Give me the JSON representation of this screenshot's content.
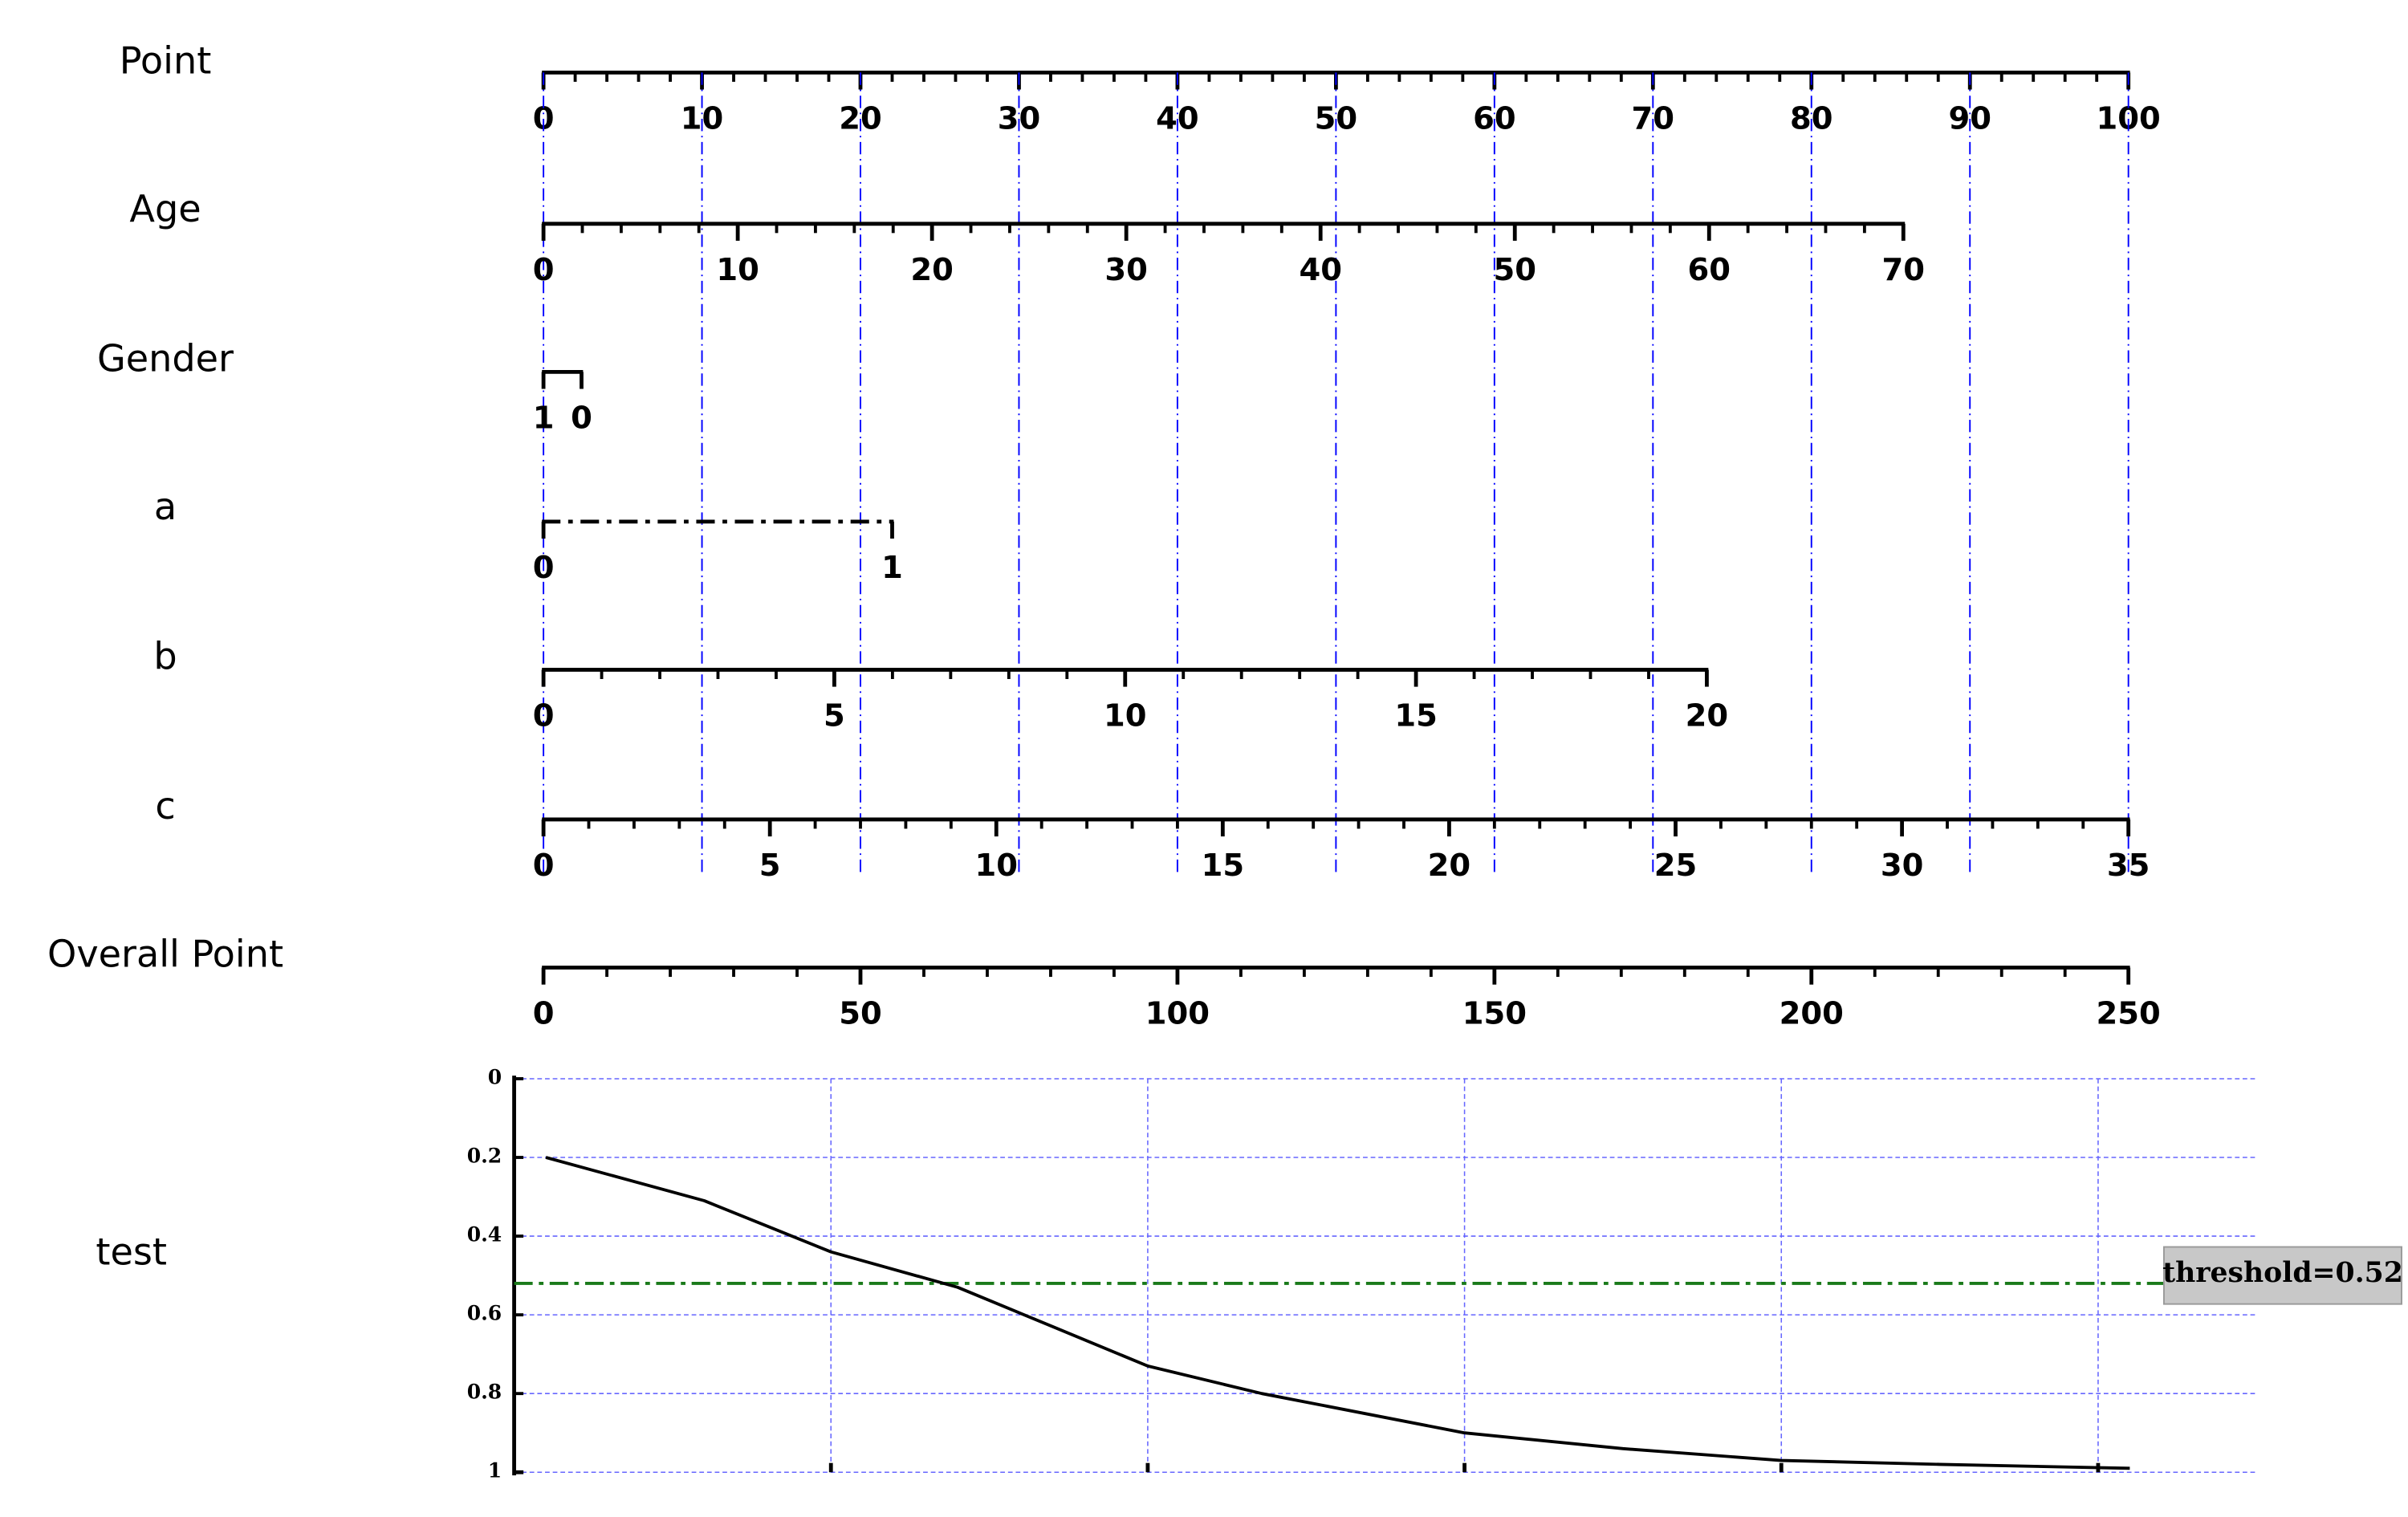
{
  "chart_data": {
    "type": "nomogram",
    "guide_color": "#0000ff",
    "rows": [
      {
        "label": "Point",
        "lim": [
          0,
          100
        ],
        "points": [
          0,
          100
        ],
        "ticks": [
          0,
          10,
          20,
          30,
          40,
          50,
          60,
          70,
          80,
          90,
          100
        ],
        "minor_step": 2,
        "style": "solid"
      },
      {
        "label": "Age",
        "lim": [
          0,
          70
        ],
        "points": [
          0,
          85.8
        ],
        "ticks": [
          0,
          10,
          20,
          30,
          40,
          50,
          60,
          70
        ],
        "minor_step": 2,
        "style": "solid"
      },
      {
        "label": "Gender",
        "lim": [
          1,
          0
        ],
        "points": [
          0,
          2.4
        ],
        "ticks": [
          1,
          0
        ],
        "style": "solid"
      },
      {
        "label": "a",
        "lim": [
          0,
          1
        ],
        "points": [
          0,
          22
        ],
        "ticks": [
          0,
          1
        ],
        "style": "dashdot"
      },
      {
        "label": "b",
        "lim": [
          0,
          20
        ],
        "points": [
          0,
          73.4
        ],
        "ticks": [
          0,
          5,
          10,
          15,
          20
        ],
        "minor_step": 1,
        "style": "solid"
      },
      {
        "label": "c",
        "lim": [
          0,
          35
        ],
        "points": [
          0,
          100
        ],
        "ticks": [
          0,
          5,
          10,
          15,
          20,
          25,
          30,
          35
        ],
        "minor_step": 1,
        "style": "solid"
      },
      {
        "label": "Overall Point",
        "lim": [
          0,
          250
        ],
        "points": [
          0,
          100
        ],
        "ticks": [
          0,
          50,
          100,
          150,
          200,
          250
        ],
        "minor_step": 10,
        "style": "solid"
      }
    ],
    "panel": {
      "label": "test",
      "xlim": [
        -5,
        270
      ],
      "xticks": [
        45,
        95,
        145,
        195,
        245
      ],
      "ylim": [
        0,
        1
      ],
      "yticks": [
        0,
        0.2,
        0.4,
        0.6,
        0.8,
        1
      ],
      "grid": true,
      "grid_color": "#6666ff",
      "x": [
        0,
        25,
        45,
        65,
        95,
        113,
        145,
        170,
        195,
        220,
        250
      ],
      "values": [
        0.2,
        0.31,
        0.44,
        0.53,
        0.73,
        0.8,
        0.9,
        0.94,
        0.97,
        0.98,
        0.99
      ],
      "color": "#000000",
      "threshold": 0.52,
      "threshold_color": "#1a7a1a",
      "threshold_label": "threshold=0.52"
    }
  }
}
